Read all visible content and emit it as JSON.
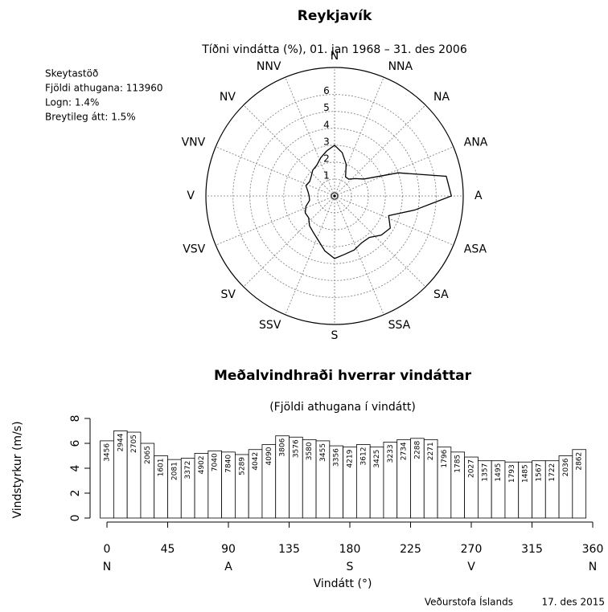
{
  "chart_data": [
    {
      "type": "polar",
      "title": "Reykjavík",
      "subtitle": "Tíðni vindátta (%), 01. jan 1968 – 31. des 2006",
      "annotations": [
        "Skeytastöð",
        "Fjöldi athugana: 113960",
        "Logn: 1.4%",
        "Breytileg átt: 1.5%"
      ],
      "x": [
        0,
        10,
        20,
        30,
        40,
        50,
        60,
        70,
        80,
        90,
        100,
        110,
        120,
        130,
        140,
        150,
        160,
        170,
        180,
        190,
        200,
        210,
        220,
        230,
        240,
        250,
        260,
        270,
        280,
        290,
        300,
        310,
        320,
        330,
        340,
        350
      ],
      "values": [
        3.0,
        2.6,
        2.0,
        1.3,
        1.3,
        1.6,
        2.0,
        4.0,
        6.7,
        6.9,
        4.8,
        3.4,
        3.8,
        3.6,
        3.2,
        3.2,
        3.4,
        3.5,
        3.7,
        3.3,
        2.8,
        2.5,
        2.3,
        2.0,
        2.0,
        1.8,
        1.5,
        1.5,
        1.6,
        1.8,
        1.7,
        1.8,
        2.0,
        2.1,
        2.4,
        2.7
      ],
      "color": "#000000",
      "rlim": [
        0,
        7.6
      ],
      "rticks": [
        1,
        2,
        3,
        4,
        5,
        6
      ],
      "directions": [
        {
          "value": 0,
          "label": "N"
        },
        {
          "value": 22.5,
          "label": "NNA"
        },
        {
          "value": 45,
          "label": "NA"
        },
        {
          "value": 67.5,
          "label": "ANA"
        },
        {
          "value": 90,
          "label": "A"
        },
        {
          "value": 112.5,
          "label": "ASA"
        },
        {
          "value": 135,
          "label": "SA"
        },
        {
          "value": 157.5,
          "label": "SSA"
        },
        {
          "value": 180,
          "label": "S"
        },
        {
          "value": 202.5,
          "label": "SSV"
        },
        {
          "value": 225,
          "label": "SV"
        },
        {
          "value": 247.5,
          "label": "VSV"
        },
        {
          "value": 270,
          "label": "V"
        },
        {
          "value": 292.5,
          "label": "VNV"
        },
        {
          "value": 315,
          "label": "NV"
        },
        {
          "value": 337.5,
          "label": "NNV"
        }
      ],
      "grid": true
    },
    {
      "type": "bar",
      "title": "Meðalvindhraði hverrar vindáttar",
      "subtitle": "(Fjöldi athugana í vindátt)",
      "x_label": "Vindátt (°)",
      "y_label": "Vindstyrkur (m/s)",
      "x": [
        0,
        10,
        20,
        30,
        40,
        50,
        60,
        70,
        80,
        90,
        100,
        110,
        120,
        130,
        140,
        150,
        160,
        170,
        180,
        190,
        200,
        210,
        220,
        230,
        240,
        250,
        260,
        270,
        280,
        290,
        300,
        310,
        320,
        330,
        340,
        350
      ],
      "values": [
        6.2,
        7.0,
        6.9,
        6.0,
        5.0,
        4.7,
        4.8,
        5.2,
        5.4,
        5.3,
        5.1,
        5.5,
        5.9,
        6.6,
        6.5,
        6.3,
        6.2,
        5.8,
        5.7,
        5.9,
        5.7,
        6.1,
        6.3,
        6.4,
        6.3,
        5.7,
        5.3,
        4.9,
        4.6,
        4.6,
        4.5,
        4.5,
        4.6,
        4.6,
        5.0,
        5.5
      ],
      "counts": [
        "3456",
        "2944",
        "2705",
        "2065",
        "1601",
        "2081",
        "3372",
        "4902",
        "7040",
        "7840",
        "5289",
        "4042",
        "4090",
        "3806",
        "3576",
        "3580",
        "3455",
        "3356",
        "4219",
        "3612",
        "3425",
        "3233",
        "2734",
        "2288",
        "2271",
        "1796",
        "1785",
        "2027",
        "1357",
        "1495",
        "1793",
        "1485",
        "1567",
        "1722",
        "2036",
        "2862"
      ],
      "color": "#ffffff",
      "xlim": [
        0,
        360
      ],
      "xticks": [
        0,
        45,
        90,
        135,
        180,
        225,
        270,
        315,
        360
      ],
      "xtick_directions": [
        {
          "value": 0,
          "label": "N"
        },
        {
          "value": 90,
          "label": "A"
        },
        {
          "value": 180,
          "label": "S"
        },
        {
          "value": 270,
          "label": "V"
        },
        {
          "value": 360,
          "label": "N"
        }
      ],
      "ylim": [
        0,
        8
      ],
      "yticks": [
        0,
        2,
        4,
        6,
        8
      ]
    }
  ],
  "footer": {
    "source": "Veðurstofa Íslands",
    "date": "17. des 2015"
  }
}
